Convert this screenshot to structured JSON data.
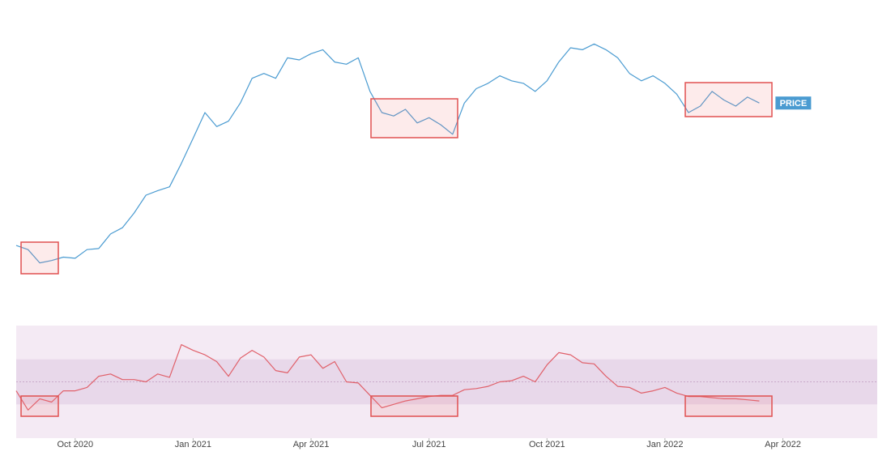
{
  "chart_data": [
    {
      "type": "line",
      "log_scale": true,
      "x": [
        2020.625,
        2020.65,
        2020.675,
        2020.7,
        2020.725,
        2020.75,
        2020.775,
        2020.8,
        2020.825,
        2020.85,
        2020.875,
        2020.9,
        2020.925,
        2020.95,
        2020.975,
        2021.0,
        2021.025,
        2021.05,
        2021.075,
        2021.1,
        2021.125,
        2021.15,
        2021.175,
        2021.2,
        2021.225,
        2021.25,
        2021.275,
        2021.3,
        2021.325,
        2021.35,
        2021.375,
        2021.4,
        2021.425,
        2021.45,
        2021.475,
        2021.5,
        2021.525,
        2021.55,
        2021.575,
        2021.6,
        2021.625,
        2021.65,
        2021.675,
        2021.7,
        2021.725,
        2021.75,
        2021.775,
        2021.8,
        2021.825,
        2021.85,
        2021.875,
        2021.9,
        2021.925,
        2021.95,
        2021.975,
        2022.0,
        2022.025,
        2022.05,
        2022.075,
        2022.1,
        2022.125,
        2022.15,
        2022.175,
        2022.2
      ],
      "series": [
        {
          "name": "PRICE",
          "color": "#4a9bd1",
          "values": [
            11800,
            11400,
            10200,
            10400,
            10700,
            10600,
            11400,
            11500,
            13000,
            13700,
            15500,
            18000,
            18700,
            19300,
            23500,
            29000,
            36000,
            32000,
            33500,
            39000,
            48000,
            50000,
            48000,
            57000,
            56000,
            59000,
            61000,
            55000,
            54000,
            57000,
            43000,
            36000,
            35000,
            37000,
            33000,
            34500,
            32500,
            30000,
            39000,
            44000,
            46000,
            49000,
            47000,
            46000,
            43000,
            47000,
            55000,
            62000,
            61000,
            64000,
            61000,
            57000,
            50000,
            47000,
            49000,
            46000,
            42000,
            36000,
            38000,
            43000,
            40000,
            38000,
            41000,
            39000
          ]
        }
      ],
      "xlim": [
        2020.625,
        2022.45
      ],
      "ylim": [
        9000,
        75000
      ]
    },
    {
      "type": "line",
      "x": [
        2020.625,
        2020.65,
        2020.675,
        2020.7,
        2020.725,
        2020.75,
        2020.775,
        2020.8,
        2020.825,
        2020.85,
        2020.875,
        2020.9,
        2020.925,
        2020.95,
        2020.975,
        2021.0,
        2021.025,
        2021.05,
        2021.075,
        2021.1,
        2021.125,
        2021.15,
        2021.175,
        2021.2,
        2021.225,
        2021.25,
        2021.275,
        2021.3,
        2021.325,
        2021.35,
        2021.375,
        2021.4,
        2021.425,
        2021.45,
        2021.475,
        2021.5,
        2021.525,
        2021.55,
        2021.575,
        2021.6,
        2021.625,
        2021.65,
        2021.675,
        2021.7,
        2021.725,
        2021.75,
        2021.775,
        2021.8,
        2021.825,
        2021.85,
        2021.875,
        2021.9,
        2021.925,
        2021.95,
        2021.975,
        2022.0,
        2022.025,
        2022.05,
        2022.075,
        2022.1,
        2022.125,
        2022.15,
        2022.175,
        2022.2
      ],
      "series": [
        {
          "color": "#e0606a",
          "values": [
            42,
            25,
            35,
            32,
            42,
            42,
            45,
            55,
            57,
            52,
            52,
            50,
            57,
            54,
            83,
            78,
            74,
            68,
            55,
            71,
            78,
            72,
            60,
            58,
            72,
            74,
            62,
            68,
            50,
            49,
            38,
            27,
            30,
            33,
            35,
            37,
            38,
            38,
            43,
            44,
            46,
            50,
            51,
            55,
            50,
            65,
            76,
            74,
            67,
            66,
            55,
            46,
            45,
            40,
            42,
            45,
            40,
            37,
            37,
            36,
            35,
            35,
            34,
            33
          ]
        }
      ],
      "xlim": [
        2020.625,
        2022.45
      ],
      "ylim": [
        0,
        100
      ],
      "bands": [
        30,
        70
      ],
      "midline": 50,
      "xticks": [
        {
          "value": 2020.75,
          "label": "Oct 2020"
        },
        {
          "value": 2021.0,
          "label": "Jan 2021"
        },
        {
          "value": 2021.25,
          "label": "Apr 2021"
        },
        {
          "value": 2021.5,
          "label": "Jul 2021"
        },
        {
          "value": 2021.75,
          "label": "Oct 2021"
        },
        {
          "value": 2022.0,
          "label": "Jan 2022"
        },
        {
          "value": 2022.25,
          "label": "Apr 2022"
        }
      ]
    }
  ]
}
